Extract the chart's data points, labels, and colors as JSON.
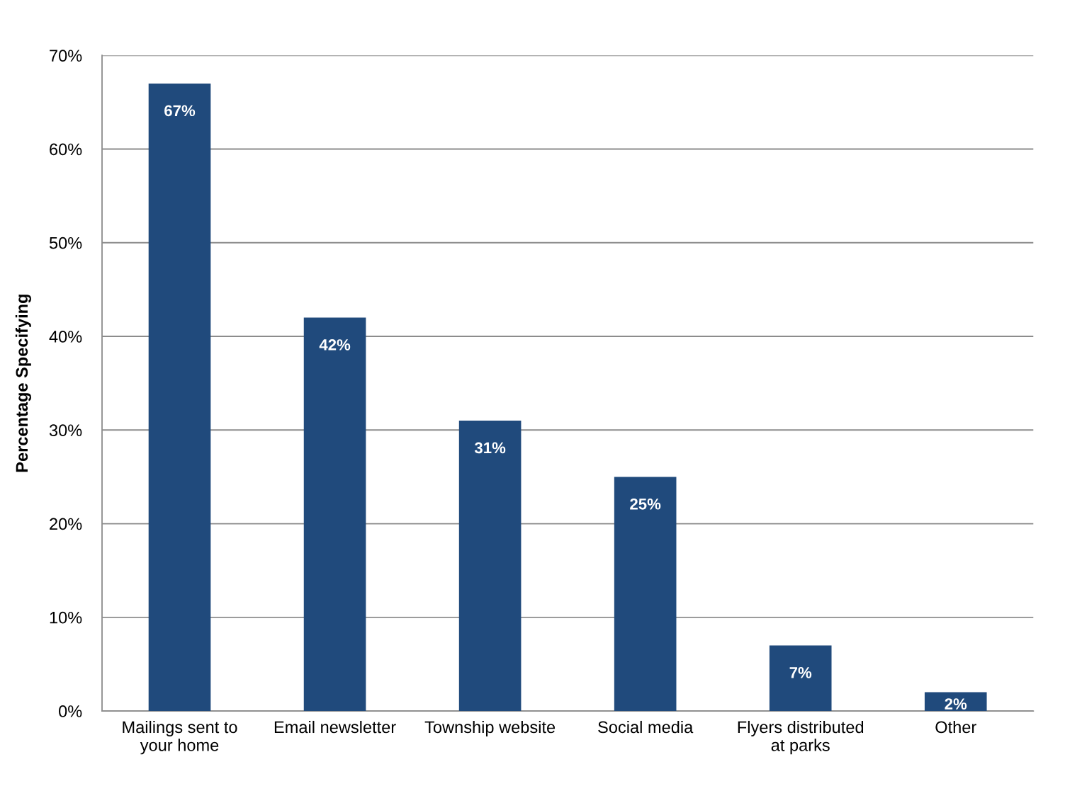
{
  "chart_data": {
    "type": "bar",
    "ylabel": "Percentage Specifying",
    "categories": [
      "Mailings sent to\nyour home",
      "Email newsletter",
      "Township website",
      "Social media",
      "Flyers distributed\nat parks",
      "Other"
    ],
    "values": [
      67,
      42,
      31,
      25,
      7,
      2
    ],
    "value_labels": [
      "67%",
      "42%",
      "31%",
      "25%",
      "7%",
      "2%"
    ],
    "color": "#204a7c",
    "ylim": [
      0,
      70
    ],
    "yticks": [
      {
        "value": 0,
        "label": "0%"
      },
      {
        "value": 10,
        "label": "10%"
      },
      {
        "value": 20,
        "label": "20%"
      },
      {
        "value": 30,
        "label": "30%"
      },
      {
        "value": 40,
        "label": "40%"
      },
      {
        "value": 50,
        "label": "50%"
      },
      {
        "value": 60,
        "label": "60%"
      },
      {
        "value": 70,
        "label": "70%"
      }
    ],
    "grid": "y",
    "legend": false
  }
}
